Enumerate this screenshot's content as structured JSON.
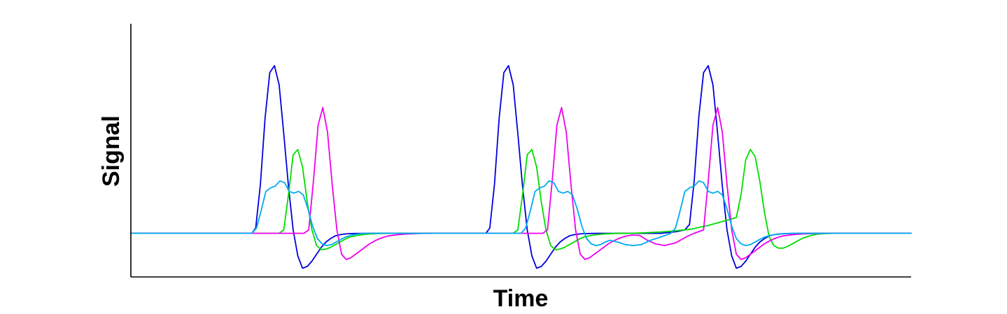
{
  "chart_data": {
    "type": "line",
    "xlabel": "Time",
    "ylabel": "Signal",
    "title": "",
    "xlim": [
      0,
      1000
    ],
    "ylim": [
      -0.25,
      1.2
    ],
    "grid": false,
    "legend": "none",
    "series": [
      {
        "color": "#0000dd",
        "x": [
          0,
          155,
          160,
          166,
          172,
          178,
          184,
          190,
          196,
          202,
          208,
          214,
          220,
          226,
          232,
          238,
          244,
          250,
          256,
          262,
          268,
          274,
          280,
          290,
          300,
          310,
          320,
          340,
          360,
          380,
          400,
          455,
          460,
          466,
          472,
          478,
          484,
          490,
          496,
          502,
          508,
          514,
          520,
          526,
          532,
          538,
          544,
          550,
          556,
          562,
          568,
          574,
          580,
          590,
          600,
          610,
          620,
          640,
          660,
          680,
          700,
          710,
          716,
          722,
          728,
          734,
          740,
          746,
          752,
          758,
          764,
          770,
          776,
          782,
          788,
          794,
          800,
          806,
          812,
          818,
          824,
          830,
          836,
          846,
          856,
          866,
          876,
          896,
          916,
          936,
          960,
          1000
        ],
        "y": [
          0,
          0,
          0.03,
          0.28,
          0.66,
          0.92,
          0.96,
          0.85,
          0.57,
          0.27,
          0.02,
          -0.13,
          -0.2,
          -0.19,
          -0.16,
          -0.12,
          -0.08,
          -0.05,
          -0.03,
          -0.015,
          -0.008,
          -0.004,
          -0.002,
          -0.001,
          0,
          0,
          0,
          0,
          0,
          0,
          0,
          0,
          0.03,
          0.28,
          0.66,
          0.92,
          0.96,
          0.85,
          0.57,
          0.27,
          0.02,
          -0.13,
          -0.2,
          -0.19,
          -0.16,
          -0.12,
          -0.08,
          -0.05,
          -0.03,
          -0.015,
          -0.008,
          -0.004,
          -0.002,
          -0.001,
          0,
          0,
          0,
          0,
          0,
          0,
          0.01,
          0.02,
          0.05,
          0.3,
          0.67,
          0.92,
          0.96,
          0.85,
          0.57,
          0.27,
          0.02,
          -0.13,
          -0.2,
          -0.19,
          -0.16,
          -0.12,
          -0.08,
          -0.05,
          -0.03,
          -0.015,
          -0.008,
          -0.004,
          -0.002,
          -0.001,
          0,
          0,
          0,
          0,
          0,
          0,
          0,
          0
        ]
      },
      {
        "color": "#00dd00",
        "x": [
          0,
          190,
          196,
          202,
          208,
          214,
          220,
          226,
          232,
          238,
          244,
          250,
          256,
          262,
          268,
          274,
          280,
          290,
          300,
          310,
          320,
          340,
          360,
          380,
          400,
          420,
          440,
          490,
          496,
          502,
          508,
          514,
          520,
          526,
          532,
          538,
          544,
          550,
          556,
          562,
          568,
          574,
          580,
          590,
          600,
          610,
          620,
          640,
          660,
          680,
          700,
          720,
          740,
          760,
          776,
          782,
          788,
          794,
          800,
          806,
          812,
          818,
          824,
          830,
          836,
          842,
          848,
          854,
          860,
          866,
          872,
          878,
          884,
          894,
          904,
          914,
          924,
          944,
          970,
          1000
        ],
        "y": [
          0,
          0,
          0.02,
          0.22,
          0.45,
          0.48,
          0.38,
          0.18,
          0.02,
          -0.07,
          -0.095,
          -0.09,
          -0.08,
          -0.065,
          -0.05,
          -0.035,
          -0.022,
          -0.012,
          -0.006,
          -0.003,
          -0.001,
          0,
          0,
          0,
          0,
          0,
          0,
          0,
          0.02,
          0.22,
          0.45,
          0.48,
          0.38,
          0.18,
          0.02,
          -0.07,
          -0.095,
          -0.09,
          -0.08,
          -0.065,
          -0.05,
          -0.035,
          -0.022,
          -0.012,
          -0.006,
          -0.003,
          -0.001,
          0,
          0.003,
          0.008,
          0.015,
          0.025,
          0.045,
          0.07,
          0.09,
          0.22,
          0.42,
          0.48,
          0.44,
          0.3,
          0.12,
          -0.02,
          -0.07,
          -0.085,
          -0.085,
          -0.075,
          -0.06,
          -0.045,
          -0.03,
          -0.02,
          -0.012,
          -0.006,
          -0.003,
          -0.001,
          0,
          0,
          0,
          0,
          0,
          0
        ]
      },
      {
        "color": "#ee00ee",
        "x": [
          0,
          222,
          228,
          234,
          240,
          246,
          252,
          258,
          264,
          270,
          276,
          282,
          288,
          294,
          300,
          306,
          312,
          318,
          324,
          330,
          340,
          350,
          360,
          370,
          390,
          410,
          430,
          450,
          470,
          490,
          528,
          534,
          540,
          546,
          552,
          558,
          564,
          570,
          576,
          582,
          588,
          594,
          600,
          606,
          612,
          618,
          624,
          630,
          636,
          642,
          652,
          662,
          672,
          684,
          698,
          712,
          722,
          728,
          734,
          740,
          746,
          752,
          758,
          764,
          770,
          776,
          782,
          788,
          794,
          800,
          806,
          812,
          818,
          824,
          830,
          836,
          846,
          856,
          866,
          876,
          896,
          920,
          1000
        ],
        "y": [
          0,
          0,
          0.02,
          0.3,
          0.62,
          0.72,
          0.58,
          0.28,
          0.02,
          -0.12,
          -0.15,
          -0.14,
          -0.12,
          -0.1,
          -0.08,
          -0.06,
          -0.045,
          -0.032,
          -0.022,
          -0.015,
          -0.009,
          -0.005,
          -0.003,
          -0.001,
          0,
          0,
          0,
          0,
          0,
          0,
          0,
          0.02,
          0.3,
          0.62,
          0.72,
          0.58,
          0.28,
          0.02,
          -0.12,
          -0.15,
          -0.14,
          -0.12,
          -0.1,
          -0.08,
          -0.06,
          -0.045,
          -0.032,
          -0.022,
          -0.015,
          -0.01,
          -0.012,
          -0.04,
          -0.06,
          -0.07,
          -0.055,
          -0.02,
          0,
          0.01,
          0.02,
          0.3,
          0.62,
          0.72,
          0.58,
          0.28,
          0.02,
          -0.12,
          -0.15,
          -0.14,
          -0.12,
          -0.1,
          -0.08,
          -0.06,
          -0.045,
          -0.032,
          -0.022,
          -0.015,
          -0.009,
          -0.005,
          -0.003,
          -0.001,
          0,
          0,
          0
        ]
      },
      {
        "color": "#00aaee",
        "x": [
          0,
          155,
          161,
          167,
          173,
          179,
          185,
          191,
          197,
          203,
          209,
          215,
          221,
          227,
          233,
          239,
          245,
          251,
          257,
          263,
          269,
          275,
          281,
          287,
          293,
          299,
          305,
          315,
          325,
          335,
          345,
          365,
          385,
          405,
          425,
          445,
          465,
          485,
          500,
          506,
          512,
          518,
          524,
          530,
          536,
          542,
          548,
          554,
          560,
          566,
          572,
          578,
          584,
          590,
          596,
          602,
          608,
          614,
          624,
          634,
          644,
          654,
          666,
          680,
          692,
          698,
          704,
          710,
          716,
          722,
          728,
          734,
          740,
          746,
          752,
          758,
          764,
          770,
          776,
          782,
          788,
          794,
          800,
          806,
          812,
          818,
          826,
          836,
          846,
          856,
          876,
          900,
          1000
        ],
        "y": [
          0,
          0,
          0.03,
          0.13,
          0.24,
          0.26,
          0.27,
          0.3,
          0.29,
          0.24,
          0.23,
          0.24,
          0.22,
          0.14,
          0.04,
          -0.03,
          -0.06,
          -0.07,
          -0.065,
          -0.05,
          -0.035,
          -0.022,
          -0.013,
          -0.007,
          -0.003,
          -0.001,
          0,
          0,
          0,
          0,
          0,
          0,
          0,
          0,
          0,
          0,
          0,
          0,
          0,
          0.03,
          0.13,
          0.24,
          0.26,
          0.27,
          0.3,
          0.29,
          0.24,
          0.23,
          0.24,
          0.22,
          0.14,
          0.04,
          -0.03,
          -0.06,
          -0.07,
          -0.065,
          -0.05,
          -0.04,
          -0.05,
          -0.065,
          -0.07,
          -0.065,
          -0.04,
          -0.02,
          0,
          0.03,
          0.13,
          0.24,
          0.26,
          0.27,
          0.3,
          0.29,
          0.24,
          0.23,
          0.24,
          0.22,
          0.14,
          0.04,
          -0.03,
          -0.06,
          -0.07,
          -0.065,
          -0.05,
          -0.035,
          -0.022,
          -0.013,
          -0.007,
          -0.003,
          -0.001,
          0,
          0,
          0,
          0
        ]
      }
    ]
  }
}
